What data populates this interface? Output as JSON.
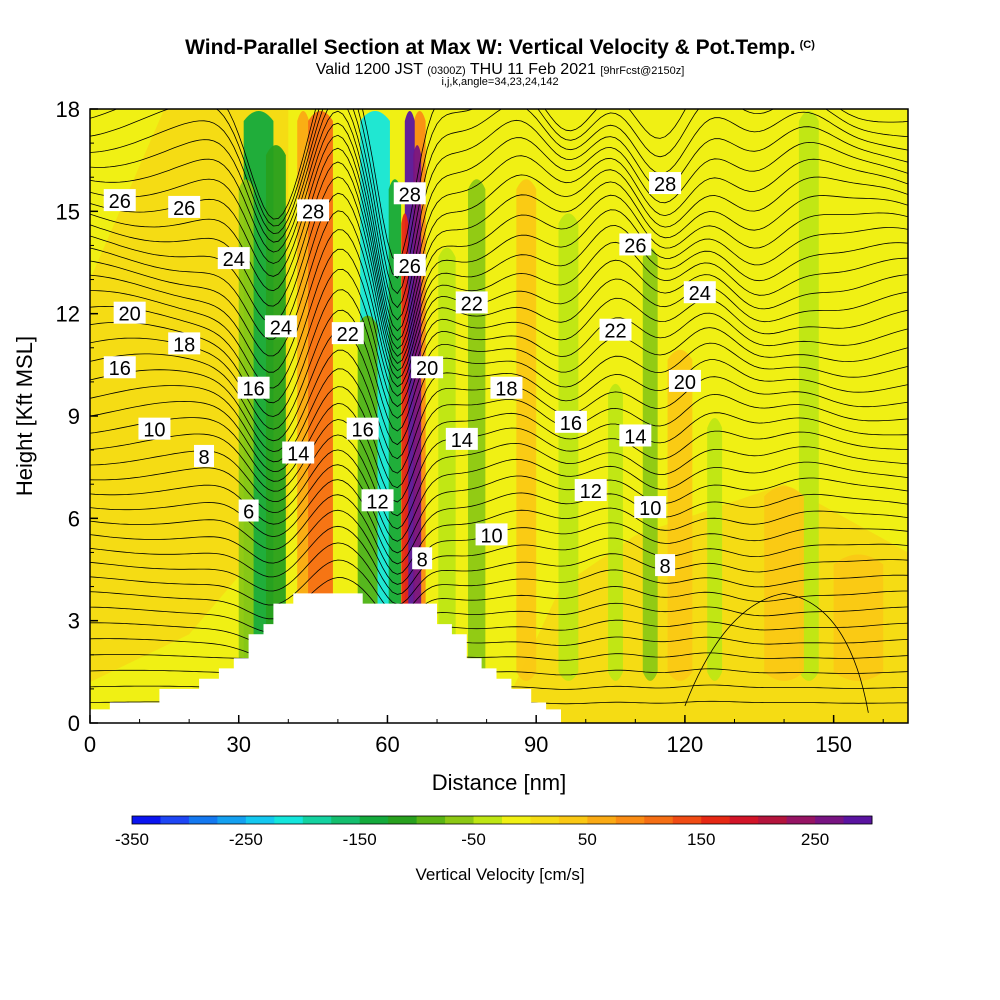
{
  "chart_data": {
    "type": "contour-cross-section",
    "title": "Wind-Parallel Section at Max W: Vertical Velocity & Pot.Temp.",
    "title_mark": "(C)",
    "subtitle_valid": "Valid 1200 JST",
    "subtitle_utc": "(0300Z)",
    "subtitle_date": "THU 11 Feb 2021",
    "subtitle_fcst": "[9hrFcst@2150z]",
    "subtitle2": "i,j,k,angle=34,23,24,142",
    "xlabel": "Distance [nm]",
    "ylabel": "Height [Kft MSL]",
    "xlim": [
      0,
      165
    ],
    "ylim": [
      0,
      18
    ],
    "xticks": [
      "0",
      "30",
      "60",
      "90",
      "120",
      "150"
    ],
    "yticks": [
      "0",
      "3",
      "6",
      "9",
      "12",
      "15",
      "18"
    ],
    "colorbar_label": "Vertical Velocity [cm/s]",
    "colorbar_ticks": [
      "-350",
      "-250",
      "-150",
      "-50",
      "50",
      "150",
      "250"
    ],
    "colorbar_colors": [
      "#0a14f0",
      "#1e46f5",
      "#1478f0",
      "#14a0f0",
      "#14c8f0",
      "#14e6dc",
      "#14d2a0",
      "#14be6e",
      "#14aa3c",
      "#28a01e",
      "#5ab414",
      "#8cc814",
      "#bee614",
      "#f0f014",
      "#f5dc14",
      "#fac814",
      "#faaa14",
      "#fa8c14",
      "#f56e14",
      "#f04b14",
      "#e62814",
      "#d21428",
      "#b4143c",
      "#961464",
      "#781482",
      "#5a14a0"
    ],
    "terrain": [
      [
        0,
        0.4
      ],
      [
        4,
        0.4
      ],
      [
        4,
        0.6
      ],
      [
        14,
        0.6
      ],
      [
        14,
        1
      ],
      [
        22,
        1
      ],
      [
        22,
        1.3
      ],
      [
        26,
        1.3
      ],
      [
        26,
        1.6
      ],
      [
        29,
        1.6
      ],
      [
        29,
        1.9
      ],
      [
        32,
        1.9
      ],
      [
        32,
        2.6
      ],
      [
        35,
        2.6
      ],
      [
        35,
        2.9
      ],
      [
        37,
        2.9
      ],
      [
        37,
        3.5
      ],
      [
        41,
        3.5
      ],
      [
        41,
        3.8
      ],
      [
        55,
        3.8
      ],
      [
        55,
        3.5
      ],
      [
        70,
        3.5
      ],
      [
        70,
        2.9
      ],
      [
        73,
        2.9
      ],
      [
        73,
        2.6
      ],
      [
        76,
        2.6
      ],
      [
        76,
        1.9
      ],
      [
        79,
        1.9
      ],
      [
        79,
        1.6
      ],
      [
        82,
        1.6
      ],
      [
        82,
        1.3
      ],
      [
        85,
        1.3
      ],
      [
        85,
        1
      ],
      [
        89,
        1
      ],
      [
        89,
        0.6
      ],
      [
        92,
        0.6
      ],
      [
        92,
        0.4
      ],
      [
        95,
        0.4
      ],
      [
        95,
        0
      ]
    ],
    "w_features": [
      {
        "x": 34,
        "w": 6,
        "top": 18,
        "value": -150
      },
      {
        "x": 37.5,
        "w": 4,
        "top": 17,
        "value": -120
      },
      {
        "x": 31.5,
        "w": 3,
        "top": 16,
        "value": -70
      },
      {
        "x": 43,
        "w": 2.4,
        "top": 18,
        "value": 50
      },
      {
        "x": 46.5,
        "w": 5,
        "top": 18,
        "value": 100
      },
      {
        "x": 57.5,
        "w": 6,
        "top": 18,
        "value": -220
      },
      {
        "x": 61.5,
        "w": 2.5,
        "top": 16,
        "value": -130
      },
      {
        "x": 56,
        "w": 4,
        "top": 12,
        "value": -80
      },
      {
        "x": 66.5,
        "w": 2.4,
        "top": 18,
        "value": 80
      },
      {
        "x": 64.5,
        "w": 2.0,
        "top": 18,
        "value": 310
      },
      {
        "x": 66,
        "w": 1.6,
        "top": 17,
        "value": 250
      },
      {
        "x": 63.5,
        "w": 1.4,
        "top": 15,
        "value": 160
      },
      {
        "x": 72,
        "w": 3.5,
        "top": 14,
        "value": -30
      },
      {
        "x": 78,
        "w": 3.5,
        "top": 16,
        "value": -70
      },
      {
        "x": 96.5,
        "w": 4,
        "top": 15,
        "value": -50
      },
      {
        "x": 106,
        "w": 3,
        "top": 10,
        "value": -35
      },
      {
        "x": 113,
        "w": 3,
        "top": 14,
        "value": -55
      },
      {
        "x": 126,
        "w": 3,
        "top": 9,
        "value": -40
      },
      {
        "x": 145,
        "w": 4,
        "top": 18,
        "value": -45
      },
      {
        "x": 88,
        "w": 4,
        "top": 16,
        "value": 40
      },
      {
        "x": 119,
        "w": 5,
        "top": 11,
        "value": 40
      },
      {
        "x": 140,
        "w": 8,
        "top": 7,
        "value": 35
      },
      {
        "x": 155,
        "w": 10,
        "top": 5,
        "value": 35
      }
    ],
    "theta_labels": [
      {
        "text": "26",
        "x": 6,
        "y": 15.3
      },
      {
        "text": "26",
        "x": 19,
        "y": 15.1
      },
      {
        "text": "24",
        "x": 29,
        "y": 13.6
      },
      {
        "text": "20",
        "x": 8,
        "y": 12.0
      },
      {
        "text": "18",
        "x": 19,
        "y": 11.1
      },
      {
        "text": "16",
        "x": 6,
        "y": 10.4
      },
      {
        "text": "10",
        "x": 13,
        "y": 8.6
      },
      {
        "text": "8",
        "x": 23,
        "y": 7.8
      },
      {
        "text": "6",
        "x": 32,
        "y": 6.2
      },
      {
        "text": "16",
        "x": 33,
        "y": 9.8
      },
      {
        "text": "24",
        "x": 38.5,
        "y": 11.6
      },
      {
        "text": "28",
        "x": 45,
        "y": 15.0
      },
      {
        "text": "14",
        "x": 42,
        "y": 7.9
      },
      {
        "text": "22",
        "x": 52,
        "y": 11.4
      },
      {
        "text": "16",
        "x": 55,
        "y": 8.6
      },
      {
        "text": "12",
        "x": 58,
        "y": 6.5
      },
      {
        "text": "28",
        "x": 64.5,
        "y": 15.5
      },
      {
        "text": "26",
        "x": 64.5,
        "y": 13.4
      },
      {
        "text": "22",
        "x": 77,
        "y": 12.3
      },
      {
        "text": "20",
        "x": 68,
        "y": 10.4
      },
      {
        "text": "18",
        "x": 84,
        "y": 9.8
      },
      {
        "text": "14",
        "x": 75,
        "y": 8.3
      },
      {
        "text": "10",
        "x": 81,
        "y": 5.5
      },
      {
        "text": "8",
        "x": 67,
        "y": 4.8
      },
      {
        "text": "28",
        "x": 116,
        "y": 15.8
      },
      {
        "text": "26",
        "x": 110,
        "y": 14.0
      },
      {
        "text": "24",
        "x": 123,
        "y": 12.6
      },
      {
        "text": "22",
        "x": 106,
        "y": 11.5
      },
      {
        "text": "20",
        "x": 120,
        "y": 10.0
      },
      {
        "text": "16",
        "x": 97,
        "y": 8.8
      },
      {
        "text": "14",
        "x": 110,
        "y": 8.4
      },
      {
        "text": "12",
        "x": 101,
        "y": 6.8
      },
      {
        "text": "10",
        "x": 113,
        "y": 6.3
      },
      {
        "text": "8",
        "x": 116,
        "y": 4.6
      }
    ]
  }
}
